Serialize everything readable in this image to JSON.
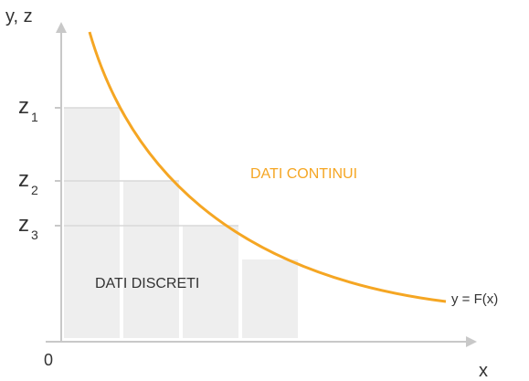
{
  "axes": {
    "y_label": "y, z",
    "x_label": "x",
    "origin_label": "0"
  },
  "levels": [
    {
      "letter": "z",
      "index": "1"
    },
    {
      "letter": "z",
      "index": "2"
    },
    {
      "letter": "z",
      "index": "3"
    }
  ],
  "curve": {
    "label": "y = F(x)",
    "region_label": "DATI CONTINUI"
  },
  "discrete": {
    "label": "DATI DISCRETI"
  },
  "colors": {
    "curve": "#f5a623",
    "bars": "#eeeeee",
    "axis": "#c8c8c8",
    "guides": "#d8d8d8",
    "text": "#333333"
  }
}
